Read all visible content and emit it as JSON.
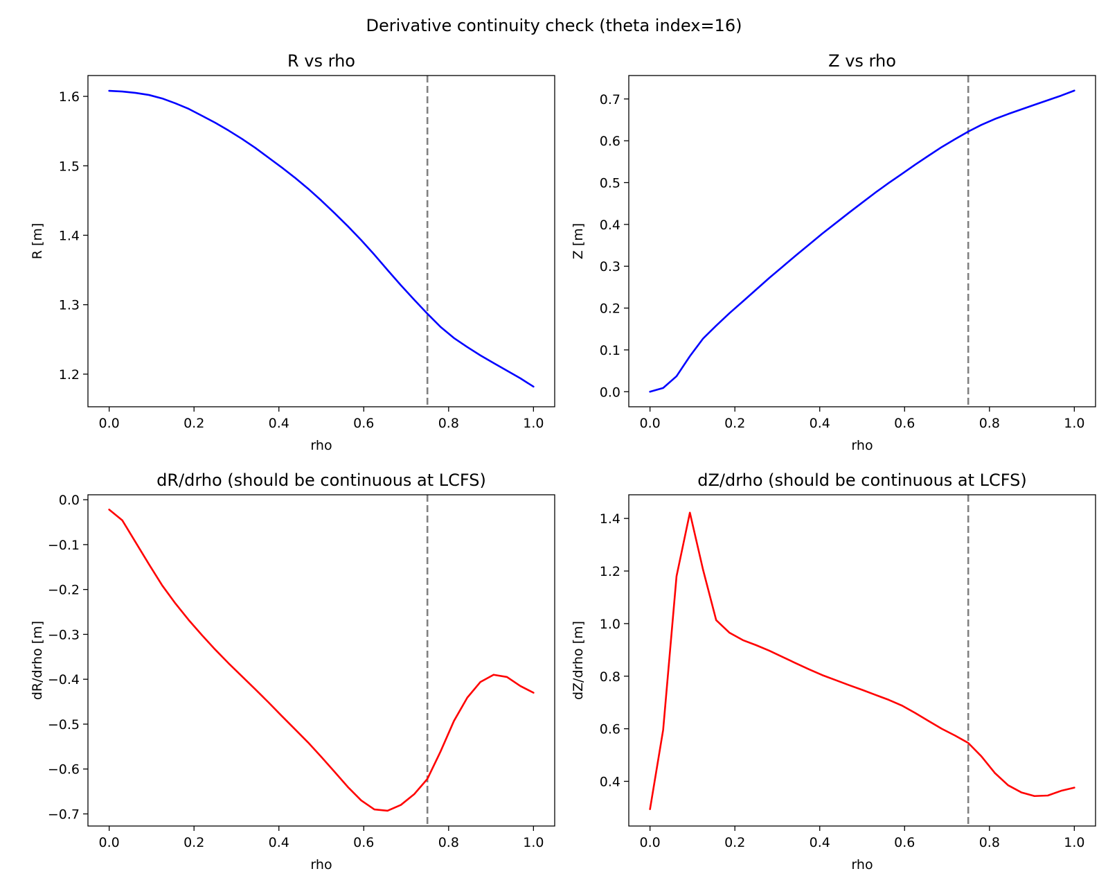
{
  "suptitle": "Derivative continuity check (theta index=16)",
  "colors": {
    "position_line": "#0000ff",
    "derivative_line": "#ff0000",
    "lcfs_marker": "#808080"
  },
  "chart_data": [
    {
      "type": "line",
      "title": "R vs rho",
      "xlabel": "rho",
      "ylabel": "R [m]",
      "xlim": [
        -0.05,
        1.05
      ],
      "ylim": [
        1.153,
        1.63
      ],
      "xticks": [
        0.0,
        0.2,
        0.4,
        0.6,
        0.8,
        1.0
      ],
      "xtick_labels": [
        "0.0",
        "0.2",
        "0.4",
        "0.6",
        "0.8",
        "1.0"
      ],
      "yticks": [
        1.2,
        1.3,
        1.4,
        1.5,
        1.6
      ],
      "ytick_labels": [
        "1.2",
        "1.3",
        "1.4",
        "1.5",
        "1.6"
      ],
      "vline_x": 0.75,
      "vline_style": "dashed",
      "series": [
        {
          "color": "#0000ff",
          "x": [
            0.0,
            0.031,
            0.0625,
            0.094,
            0.125,
            0.156,
            0.1875,
            0.219,
            0.25,
            0.281,
            0.3125,
            0.344,
            0.375,
            0.406,
            0.4375,
            0.469,
            0.5,
            0.531,
            0.5625,
            0.594,
            0.625,
            0.656,
            0.6875,
            0.719,
            0.75,
            0.781,
            0.8125,
            0.844,
            0.875,
            0.906,
            0.9375,
            0.969,
            1.0
          ],
          "values": [
            1.608,
            1.607,
            1.605,
            1.602,
            1.597,
            1.59,
            1.582,
            1.572,
            1.562,
            1.551,
            1.539,
            1.526,
            1.512,
            1.498,
            1.483,
            1.467,
            1.45,
            1.432,
            1.413,
            1.393,
            1.372,
            1.35,
            1.328,
            1.307,
            1.287,
            1.268,
            1.252,
            1.239,
            1.227,
            1.216,
            1.205,
            1.194,
            1.182
          ]
        }
      ]
    },
    {
      "type": "line",
      "title": "Z vs rho",
      "xlabel": "rho",
      "ylabel": "Z [m]",
      "xlim": [
        -0.05,
        1.05
      ],
      "ylim": [
        -0.036,
        0.756
      ],
      "xticks": [
        0.0,
        0.2,
        0.4,
        0.6,
        0.8,
        1.0
      ],
      "xtick_labels": [
        "0.0",
        "0.2",
        "0.4",
        "0.6",
        "0.8",
        "1.0"
      ],
      "yticks": [
        0.0,
        0.1,
        0.2,
        0.3,
        0.4,
        0.5,
        0.6,
        0.7
      ],
      "ytick_labels": [
        "0.0",
        "0.1",
        "0.2",
        "0.3",
        "0.4",
        "0.5",
        "0.6",
        "0.7"
      ],
      "vline_x": 0.75,
      "vline_style": "dashed",
      "series": [
        {
          "color": "#0000ff",
          "x": [
            0.0,
            0.031,
            0.0625,
            0.094,
            0.125,
            0.156,
            0.1875,
            0.219,
            0.25,
            0.281,
            0.3125,
            0.344,
            0.375,
            0.406,
            0.4375,
            0.469,
            0.5,
            0.531,
            0.5625,
            0.594,
            0.625,
            0.656,
            0.6875,
            0.719,
            0.75,
            0.781,
            0.8125,
            0.844,
            0.875,
            0.906,
            0.9375,
            0.969,
            1.0
          ],
          "values": [
            0.0,
            0.009,
            0.037,
            0.085,
            0.127,
            0.158,
            0.188,
            0.216,
            0.244,
            0.272,
            0.299,
            0.326,
            0.352,
            0.378,
            0.403,
            0.428,
            0.452,
            0.476,
            0.499,
            0.521,
            0.543,
            0.564,
            0.585,
            0.604,
            0.622,
            0.638,
            0.652,
            0.664,
            0.675,
            0.686,
            0.697,
            0.708,
            0.72
          ]
        }
      ]
    },
    {
      "type": "line",
      "title": "dR/drho (should be continuous at LCFS)",
      "xlabel": "rho",
      "ylabel": "dR/drho [m]",
      "xlim": [
        -0.05,
        1.05
      ],
      "ylim": [
        -0.727,
        0.011
      ],
      "xticks": [
        0.0,
        0.2,
        0.4,
        0.6,
        0.8,
        1.0
      ],
      "xtick_labels": [
        "0.0",
        "0.2",
        "0.4",
        "0.6",
        "0.8",
        "1.0"
      ],
      "yticks": [
        0.0,
        -0.1,
        -0.2,
        -0.3,
        -0.4,
        -0.5,
        -0.6,
        -0.7
      ],
      "ytick_labels": [
        "0.0",
        "−0.1",
        "−0.2",
        "−0.3",
        "−0.4",
        "−0.5",
        "−0.6",
        "−0.7"
      ],
      "vline_x": 0.75,
      "vline_style": "dashed",
      "series": [
        {
          "color": "#ff0000",
          "x": [
            0.0,
            0.031,
            0.0625,
            0.094,
            0.125,
            0.156,
            0.1875,
            0.219,
            0.25,
            0.281,
            0.3125,
            0.344,
            0.375,
            0.406,
            0.4375,
            0.469,
            0.5,
            0.531,
            0.5625,
            0.594,
            0.625,
            0.656,
            0.6875,
            0.719,
            0.75,
            0.781,
            0.8125,
            0.844,
            0.875,
            0.906,
            0.9375,
            0.969,
            1.0
          ],
          "values": [
            -0.022,
            -0.046,
            -0.095,
            -0.144,
            -0.191,
            -0.231,
            -0.268,
            -0.302,
            -0.334,
            -0.364,
            -0.393,
            -0.422,
            -0.451,
            -0.481,
            -0.511,
            -0.541,
            -0.573,
            -0.606,
            -0.64,
            -0.67,
            -0.69,
            -0.693,
            -0.68,
            -0.656,
            -0.622,
            -0.561,
            -0.493,
            -0.441,
            -0.406,
            -0.39,
            -0.395,
            -0.415,
            -0.43
          ]
        }
      ]
    },
    {
      "type": "line",
      "title": "dZ/drho (should be continuous at LCFS)",
      "xlabel": "rho",
      "ylabel": "dZ/drho [m]",
      "xlim": [
        -0.05,
        1.05
      ],
      "ylim": [
        0.23,
        1.49
      ],
      "xticks": [
        0.0,
        0.2,
        0.4,
        0.6,
        0.8,
        1.0
      ],
      "xtick_labels": [
        "0.0",
        "0.2",
        "0.4",
        "0.6",
        "0.8",
        "1.0"
      ],
      "yticks": [
        0.4,
        0.6,
        0.8,
        1.0,
        1.2,
        1.4
      ],
      "ytick_labels": [
        "0.4",
        "0.6",
        "0.8",
        "1.0",
        "1.2",
        "1.4"
      ],
      "vline_x": 0.75,
      "vline_style": "dashed",
      "series": [
        {
          "color": "#ff0000",
          "x": [
            0.0,
            0.031,
            0.0625,
            0.094,
            0.125,
            0.156,
            0.1875,
            0.219,
            0.25,
            0.281,
            0.3125,
            0.344,
            0.375,
            0.406,
            0.4375,
            0.469,
            0.5,
            0.531,
            0.5625,
            0.594,
            0.625,
            0.656,
            0.6875,
            0.719,
            0.75,
            0.781,
            0.8125,
            0.844,
            0.875,
            0.906,
            0.9375,
            0.969,
            1.0
          ],
          "values": [
            0.294,
            0.596,
            1.18,
            1.422,
            1.205,
            1.013,
            0.965,
            0.937,
            0.918,
            0.897,
            0.873,
            0.849,
            0.826,
            0.804,
            0.785,
            0.766,
            0.748,
            0.729,
            0.71,
            0.688,
            0.66,
            0.63,
            0.6,
            0.574,
            0.546,
            0.495,
            0.432,
            0.385,
            0.358,
            0.344,
            0.346,
            0.364,
            0.376
          ]
        }
      ]
    }
  ]
}
